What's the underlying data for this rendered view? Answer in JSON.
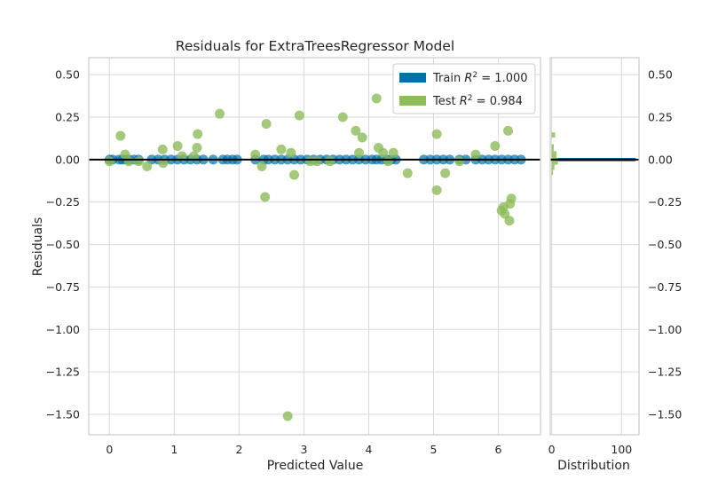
{
  "chart_data": {
    "type": "scatter",
    "title": "Residuals for ExtraTreesRegressor Model",
    "xlabel": "Predicted Value",
    "ylabel": "Residuals",
    "xlim": [
      -0.32,
      6.65
    ],
    "ylim": [
      -1.62,
      0.6
    ],
    "x_ticks": [
      0,
      1,
      2,
      3,
      4,
      5,
      6
    ],
    "y_ticks": [
      0.5,
      0.25,
      0.0,
      -0.25,
      -0.5,
      -0.75,
      -1.0,
      -1.25,
      -1.5
    ],
    "y_tick_labels": [
      "0.50",
      "0.25",
      "0.00",
      "−0.25",
      "−0.50",
      "−0.75",
      "−1.00",
      "−1.25",
      "−1.50"
    ],
    "grid": true,
    "legend_position": "top-right",
    "series": [
      {
        "name": "Train",
        "r2": "1.000",
        "color": "#0072a6",
        "points": [
          [
            0.0,
            0.0
          ],
          [
            0.05,
            0.0
          ],
          [
            0.15,
            0.0
          ],
          [
            0.2,
            0.0
          ],
          [
            0.25,
            0.0
          ],
          [
            0.3,
            0.0
          ],
          [
            0.38,
            0.0
          ],
          [
            0.45,
            0.0
          ],
          [
            0.65,
            0.0
          ],
          [
            0.75,
            0.0
          ],
          [
            0.85,
            0.0
          ],
          [
            0.95,
            0.0
          ],
          [
            1.05,
            0.0
          ],
          [
            1.15,
            0.0
          ],
          [
            1.25,
            0.0
          ],
          [
            1.35,
            0.0
          ],
          [
            1.45,
            0.0
          ],
          [
            1.6,
            0.0
          ],
          [
            1.75,
            0.0
          ],
          [
            1.82,
            0.0
          ],
          [
            1.9,
            0.0
          ],
          [
            1.97,
            0.0
          ],
          [
            2.25,
            0.0
          ],
          [
            2.38,
            0.0
          ],
          [
            2.45,
            0.0
          ],
          [
            2.55,
            0.0
          ],
          [
            2.65,
            0.0
          ],
          [
            2.75,
            0.0
          ],
          [
            2.85,
            0.0
          ],
          [
            2.95,
            0.0
          ],
          [
            3.05,
            0.0
          ],
          [
            3.15,
            0.0
          ],
          [
            3.25,
            0.0
          ],
          [
            3.35,
            0.0
          ],
          [
            3.45,
            0.0
          ],
          [
            3.55,
            0.0
          ],
          [
            3.65,
            0.0
          ],
          [
            3.75,
            0.0
          ],
          [
            3.85,
            0.0
          ],
          [
            3.95,
            0.0
          ],
          [
            4.05,
            0.0
          ],
          [
            4.12,
            0.0
          ],
          [
            4.2,
            0.0
          ],
          [
            4.28,
            0.0
          ],
          [
            4.35,
            0.0
          ],
          [
            4.42,
            0.0
          ],
          [
            4.85,
            0.0
          ],
          [
            4.95,
            0.0
          ],
          [
            5.05,
            0.0
          ],
          [
            5.15,
            0.0
          ],
          [
            5.25,
            0.0
          ],
          [
            5.4,
            0.0
          ],
          [
            5.5,
            0.0
          ],
          [
            5.65,
            0.0
          ],
          [
            5.75,
            0.0
          ],
          [
            5.85,
            0.0
          ],
          [
            5.95,
            0.0
          ],
          [
            6.05,
            0.0
          ],
          [
            6.15,
            0.0
          ],
          [
            6.25,
            0.0
          ],
          [
            6.35,
            0.0
          ]
        ]
      },
      {
        "name": "Test",
        "r2": "0.984",
        "color": "#8fbc5a",
        "points": [
          [
            0.0,
            -0.01
          ],
          [
            0.17,
            0.14
          ],
          [
            0.24,
            0.03
          ],
          [
            0.3,
            -0.01
          ],
          [
            0.45,
            -0.01
          ],
          [
            0.58,
            -0.04
          ],
          [
            0.82,
            0.06
          ],
          [
            0.83,
            -0.02
          ],
          [
            1.05,
            0.08
          ],
          [
            1.12,
            0.02
          ],
          [
            1.3,
            0.02
          ],
          [
            1.35,
            0.07
          ],
          [
            1.36,
            0.15
          ],
          [
            1.7,
            0.27
          ],
          [
            2.25,
            0.03
          ],
          [
            2.35,
            -0.04
          ],
          [
            2.4,
            -0.22
          ],
          [
            2.42,
            0.21
          ],
          [
            2.65,
            0.06
          ],
          [
            2.75,
            -1.51
          ],
          [
            2.8,
            0.04
          ],
          [
            2.85,
            -0.09
          ],
          [
            2.93,
            0.26
          ],
          [
            3.1,
            -0.01
          ],
          [
            3.2,
            -0.01
          ],
          [
            3.4,
            -0.01
          ],
          [
            3.6,
            0.25
          ],
          [
            3.8,
            0.17
          ],
          [
            3.85,
            0.04
          ],
          [
            3.9,
            0.13
          ],
          [
            4.12,
            0.36
          ],
          [
            4.15,
            0.07
          ],
          [
            4.22,
            0.04
          ],
          [
            4.3,
            -0.01
          ],
          [
            4.38,
            0.04
          ],
          [
            4.6,
            -0.08
          ],
          [
            5.05,
            0.15
          ],
          [
            5.05,
            -0.18
          ],
          [
            5.18,
            -0.08
          ],
          [
            5.4,
            -0.01
          ],
          [
            5.65,
            0.03
          ],
          [
            5.95,
            0.08
          ],
          [
            6.05,
            -0.3
          ],
          [
            6.08,
            -0.28
          ],
          [
            6.1,
            -0.32
          ],
          [
            6.15,
            0.17
          ],
          [
            6.17,
            -0.36
          ],
          [
            6.18,
            -0.26
          ],
          [
            6.2,
            -0.23
          ]
        ]
      }
    ],
    "distribution": {
      "xlabel": "Distribution",
      "x_ticks": [
        0,
        100
      ],
      "xlim": [
        -2,
        125
      ],
      "train_bar": {
        "y_from": -0.01,
        "y_to": 0.01,
        "count": 120
      },
      "test_bars": [
        {
          "y_from": 0.13,
          "y_to": 0.16,
          "count": 5
        },
        {
          "y_from": 0.05,
          "y_to": 0.09,
          "count": 3
        },
        {
          "y_from": 0.01,
          "y_to": 0.05,
          "count": 7
        },
        {
          "y_from": -0.03,
          "y_to": 0.01,
          "count": 9
        },
        {
          "y_from": -0.06,
          "y_to": -0.03,
          "count": 4
        },
        {
          "y_from": -0.09,
          "y_to": -0.06,
          "count": 2
        }
      ]
    }
  }
}
